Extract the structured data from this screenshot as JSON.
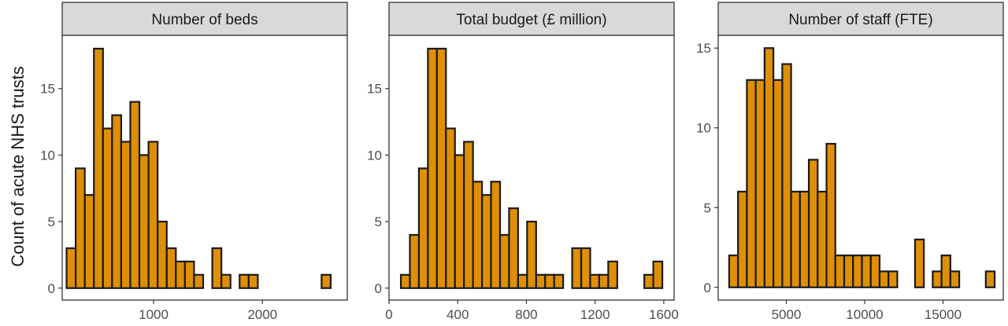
{
  "y_axis_label": "Count of acute NHS trusts",
  "colors": {
    "bar_fill": "#de8f05",
    "bar_stroke": "#1a1a1a",
    "strip_fill": "#d9d9d9",
    "panel_border": "#333333",
    "background": "#ffffff"
  },
  "chart_data": [
    {
      "type": "bar",
      "title": "Number of beds",
      "xlabel": "",
      "ylabel": "Count of acute NHS trusts",
      "xlim": [
        160,
        2780
      ],
      "ylim": [
        -0.9,
        19
      ],
      "grid": false,
      "x_ticks": [
        1000,
        2000
      ],
      "x_tick_labels": [
        "1000",
        "2000"
      ],
      "y_ticks": [
        0,
        5,
        10,
        15
      ],
      "y_tick_labels": [
        "0",
        "5",
        "10",
        "15"
      ],
      "bin_start": 200,
      "bin_width": 83.7,
      "values": [
        3,
        9,
        7,
        18,
        12,
        13,
        11,
        14,
        10,
        11,
        5,
        3,
        2,
        2,
        1,
        0,
        3,
        1,
        0,
        1,
        1,
        0,
        0,
        0,
        0,
        0,
        0,
        0,
        1
      ]
    },
    {
      "type": "bar",
      "title": "Total budget (£ million)",
      "xlabel": "",
      "ylabel": "",
      "xlim": [
        0,
        1660
      ],
      "ylim": [
        -0.9,
        19
      ],
      "grid": false,
      "x_ticks": [
        0,
        400,
        800,
        1200,
        1600
      ],
      "x_tick_labels": [
        "0",
        "400",
        "800",
        "1200",
        "1600"
      ],
      "y_ticks": [
        0,
        5,
        10,
        15
      ],
      "y_tick_labels": [
        "0",
        "5",
        "10",
        "15"
      ],
      "bin_start": 69,
      "bin_width": 52.5,
      "values": [
        1,
        4,
        9,
        18,
        18,
        12,
        10,
        11,
        8,
        7,
        8,
        4,
        6,
        1,
        5,
        1,
        1,
        1,
        0,
        3,
        3,
        1,
        1,
        2,
        0,
        0,
        0,
        1,
        2
      ]
    },
    {
      "type": "bar",
      "title": "Number of staff (FTE)",
      "xlabel": "",
      "ylabel": "",
      "xlim": [
        650,
        18850
      ],
      "ylim": [
        -0.8,
        15.8
      ],
      "grid": false,
      "x_ticks": [
        5000,
        10000,
        15000
      ],
      "x_tick_labels": [
        "5000",
        "10000",
        "15000"
      ],
      "y_ticks": [
        0,
        5,
        10,
        15
      ],
      "y_tick_labels": [
        "0",
        "5",
        "10",
        "15"
      ],
      "bin_start": 1350,
      "bin_width": 565,
      "values": [
        2,
        6,
        13,
        13,
        15,
        13,
        14,
        6,
        6,
        8,
        6,
        9,
        2,
        2,
        2,
        2,
        2,
        1,
        1,
        0,
        0,
        3,
        0,
        1,
        2,
        1,
        0,
        0,
        0,
        1
      ]
    }
  ]
}
